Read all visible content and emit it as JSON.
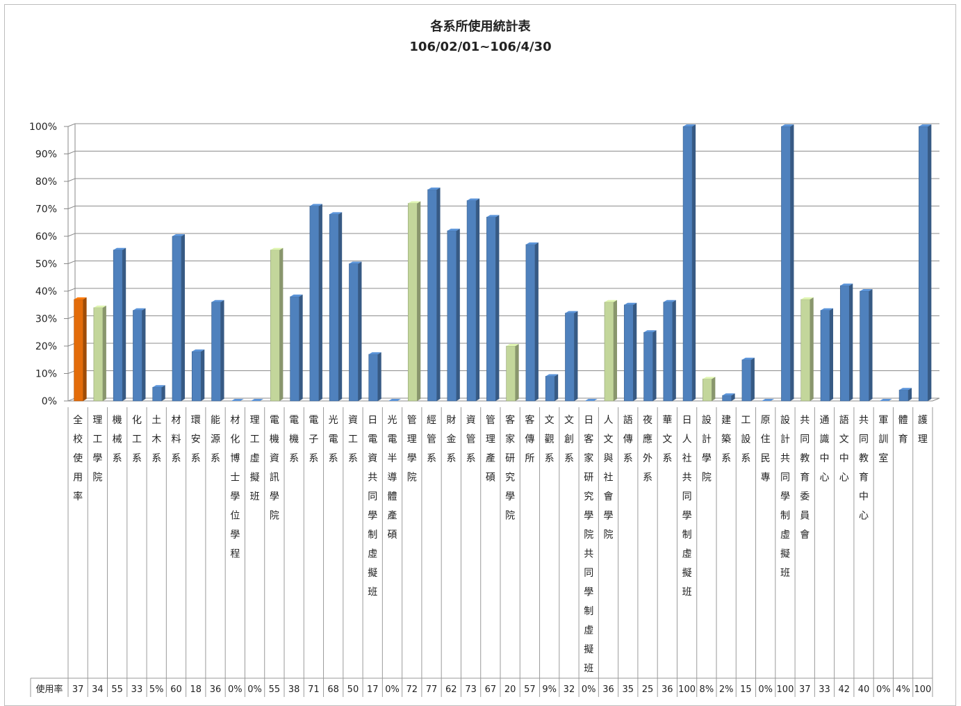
{
  "chart_data": {
    "type": "bar",
    "title": "各系所使用統計表",
    "subtitle": "106/02/01~106/4/30",
    "row_label": "使用率",
    "ylim": [
      0,
      100
    ],
    "y_ticks": [
      "0%",
      "10%",
      "20%",
      "30%",
      "40%",
      "50%",
      "60%",
      "70%",
      "80%",
      "90%",
      "100%"
    ],
    "grid": true,
    "colors": {
      "school": "#e36c0a",
      "college": "#c3d69b",
      "dept": "#4f81bd"
    },
    "categories": [
      "全校使用率",
      "理工學院",
      "機械系",
      "化工系",
      "土木系",
      "材料系",
      "環安系",
      "能源系",
      "材化博士學位學程",
      "理工虛擬班",
      "電機資訊學院",
      "電機系",
      "電子系",
      "光電系",
      "資工系",
      "日電資共同學制虛擬班",
      "光電半導體產碩",
      "管理學院",
      "經管系",
      "財金系",
      "資管系",
      "管理產碩",
      "客家研究學院",
      "客傳所",
      "文觀系",
      "文創系",
      "日客家研究學院共同學制虛擬班",
      "人文與社會學院",
      "語傳系",
      "夜應外系",
      "華文系",
      "日人社共同學制虛擬班",
      "設計學院",
      "建築系",
      "工設系",
      "原住民專",
      "設計共同學制虛擬班",
      "共同教育委員會",
      "通識中心",
      "語文中心",
      "共同教育中心",
      "軍訓室",
      "體育",
      "護理"
    ],
    "kinds": [
      "school",
      "college",
      "dept",
      "dept",
      "dept",
      "dept",
      "dept",
      "dept",
      "dept",
      "dept",
      "college",
      "dept",
      "dept",
      "dept",
      "dept",
      "dept",
      "dept",
      "college",
      "dept",
      "dept",
      "dept",
      "dept",
      "college",
      "dept",
      "dept",
      "dept",
      "dept",
      "college",
      "dept",
      "dept",
      "dept",
      "dept",
      "college",
      "dept",
      "dept",
      "dept",
      "dept",
      "college",
      "dept",
      "dept",
      "dept",
      "dept",
      "dept",
      "dept"
    ],
    "values": [
      37,
      34,
      55,
      33,
      5,
      60,
      18,
      36,
      0,
      0,
      55,
      38,
      71,
      68,
      50,
      17,
      0,
      72,
      77,
      62,
      73,
      67,
      20,
      57,
      9,
      32,
      0,
      36,
      35,
      25,
      36,
      100,
      8,
      2,
      15,
      0,
      100,
      37,
      33,
      42,
      40,
      0,
      4,
      100
    ],
    "value_labels": [
      "37",
      "34",
      "55",
      "33",
      "5%",
      "60",
      "18",
      "36",
      "0%",
      "0%",
      "55",
      "38",
      "71",
      "68",
      "50",
      "17",
      "0%",
      "72",
      "77",
      "62",
      "73",
      "67",
      "20",
      "57",
      "9%",
      "32",
      "0%",
      "36",
      "35",
      "25",
      "36",
      "100",
      "8%",
      "2%",
      "15",
      "0%",
      "100",
      "37",
      "33",
      "42",
      "40",
      "0%",
      "4%",
      "100"
    ]
  }
}
